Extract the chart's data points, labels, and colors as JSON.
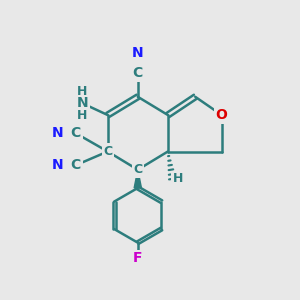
{
  "bg_color": "#e8e8e8",
  "bond_color": "#2d7d7d",
  "cn_color": "#1a1aff",
  "o_color": "#dd0000",
  "nh2_color": "#2d7d7d",
  "f_color": "#cc00cc",
  "h_color": "#2d7d7d",
  "line_width": 1.8,
  "font_size": 10,
  "small_font_size": 9,
  "xlim": [
    0.4,
    2.95
  ],
  "ylim": [
    0.45,
    2.95
  ]
}
